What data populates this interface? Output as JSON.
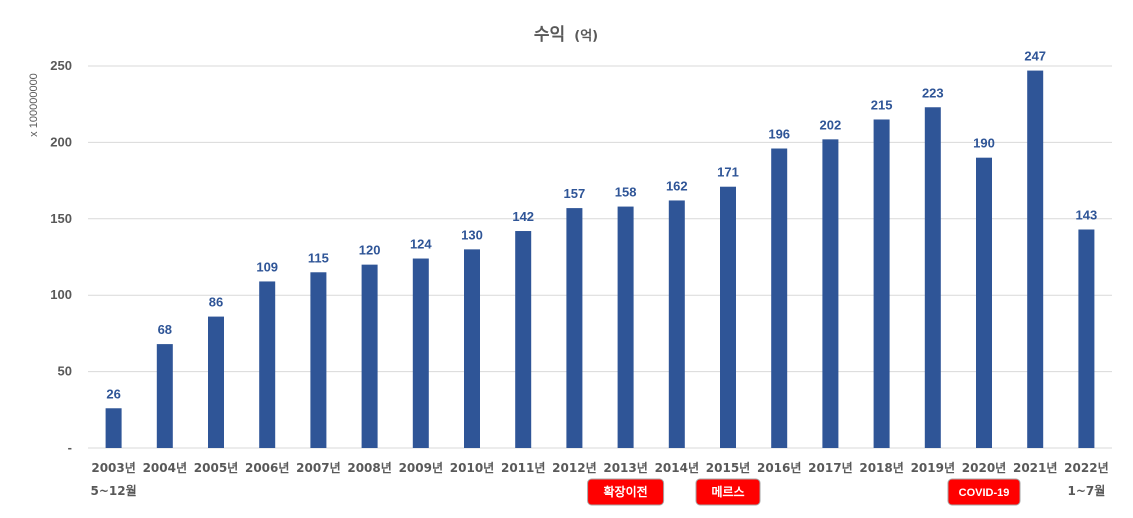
{
  "chart_data": {
    "type": "bar",
    "title": "수익",
    "title_unit": "(억)",
    "ylabel": "x 100000000",
    "ylim": [
      0,
      250
    ],
    "y_ticks": [
      {
        "value": 0,
        "label": "-"
      },
      {
        "value": 50,
        "label": "50"
      },
      {
        "value": 100,
        "label": "100"
      },
      {
        "value": 150,
        "label": "150"
      },
      {
        "value": 200,
        "label": "200"
      },
      {
        "value": 250,
        "label": "250"
      }
    ],
    "grid": true,
    "bar_color": "#2F5597",
    "categories": [
      {
        "label": "2003년",
        "sublabel": "5~12월"
      },
      {
        "label": "2004년",
        "sublabel": ""
      },
      {
        "label": "2005년",
        "sublabel": ""
      },
      {
        "label": "2006년",
        "sublabel": ""
      },
      {
        "label": "2007년",
        "sublabel": ""
      },
      {
        "label": "2008년",
        "sublabel": ""
      },
      {
        "label": "2009년",
        "sublabel": ""
      },
      {
        "label": "2010년",
        "sublabel": ""
      },
      {
        "label": "2011년",
        "sublabel": ""
      },
      {
        "label": "2012년",
        "sublabel": ""
      },
      {
        "label": "2013년",
        "sublabel": ""
      },
      {
        "label": "2014년",
        "sublabel": ""
      },
      {
        "label": "2015년",
        "sublabel": ""
      },
      {
        "label": "2016년",
        "sublabel": ""
      },
      {
        "label": "2017년",
        "sublabel": ""
      },
      {
        "label": "2018년",
        "sublabel": ""
      },
      {
        "label": "2019년",
        "sublabel": ""
      },
      {
        "label": "2020년",
        "sublabel": ""
      },
      {
        "label": "2021년",
        "sublabel": ""
      },
      {
        "label": "2022년",
        "sublabel": "1~7월"
      }
    ],
    "values": [
      26,
      68,
      86,
      109,
      115,
      120,
      124,
      130,
      142,
      157,
      158,
      162,
      171,
      196,
      202,
      215,
      223,
      190,
      247,
      143
    ],
    "annotations": [
      {
        "text": "확장이전",
        "category_index": 10,
        "color": "#ff0000"
      },
      {
        "text": "메르스",
        "category_index": 12,
        "color": "#ff0000"
      },
      {
        "text": "COVID-19",
        "category_index": 17,
        "color": "#ff0000"
      }
    ]
  }
}
